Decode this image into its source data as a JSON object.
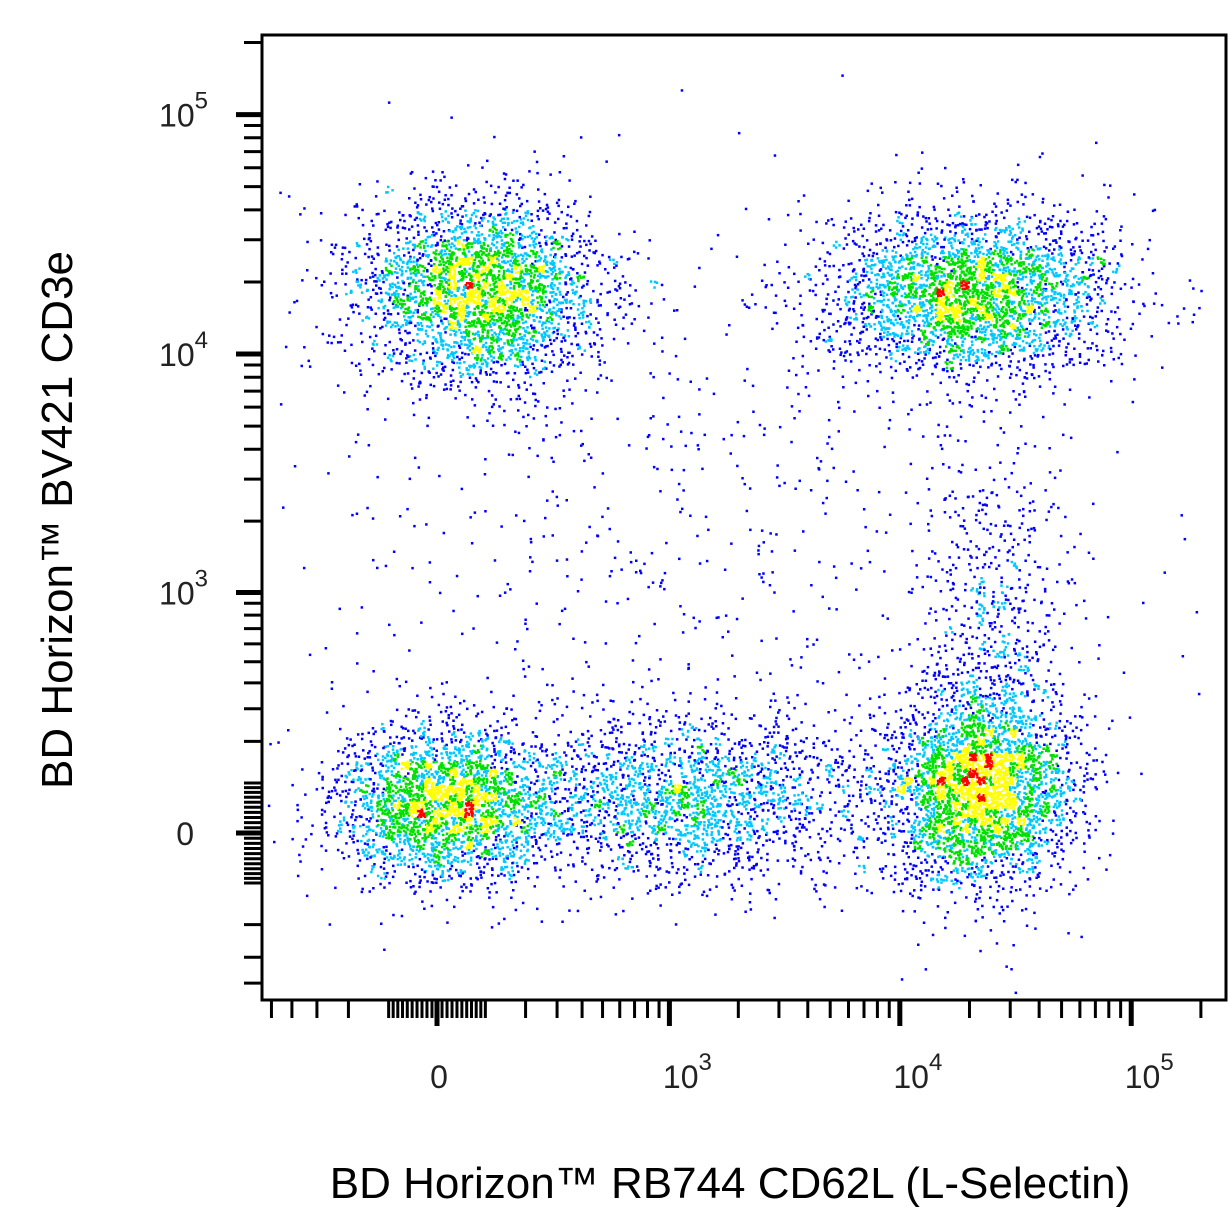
{
  "chart_data": {
    "type": "scatter",
    "subtype": "flow-cytometry density dot plot",
    "scale": "biexponential",
    "xlabel": "BD Horizon™ RB744 CD62L (L-Selectin)",
    "ylabel": "BD Horizon™ BV421 CD3e",
    "xlim": [
      -550,
      256000
    ],
    "ylim": [
      -475,
      214000
    ],
    "x_ticks": [
      {
        "value": 0,
        "base": "0",
        "exp": ""
      },
      {
        "value": 1000,
        "base": "10",
        "exp": "3"
      },
      {
        "value": 10000,
        "base": "10",
        "exp": "4"
      },
      {
        "value": 100000,
        "base": "10",
        "exp": "5"
      }
    ],
    "y_ticks": [
      {
        "value": 0,
        "base": "0",
        "exp": ""
      },
      {
        "value": 1000,
        "base": "10",
        "exp": "3"
      },
      {
        "value": 10000,
        "base": "10",
        "exp": "4"
      },
      {
        "value": 100000,
        "base": "10",
        "exp": "5"
      }
    ],
    "grid": false,
    "colormap": [
      "#0000ff",
      "#00c8ff",
      "#00e000",
      "#ffff00",
      "#ff0000"
    ],
    "populations": [
      {
        "x": 90,
        "y": 18500,
        "weight": 0.2
      },
      {
        "x": 20000,
        "y": 18000,
        "weight": 0.2
      },
      {
        "x": 20,
        "y": 60,
        "weight": 0.17
      },
      {
        "x": 1200,
        "y": 70,
        "weight": 0.14
      },
      {
        "x": 22000,
        "y": 90,
        "weight": 0.2
      },
      {
        "x": 25000,
        "y": 500,
        "weight": 0.05
      },
      {
        "x": 1000,
        "y": 2000,
        "weight": 0.04
      }
    ]
  }
}
